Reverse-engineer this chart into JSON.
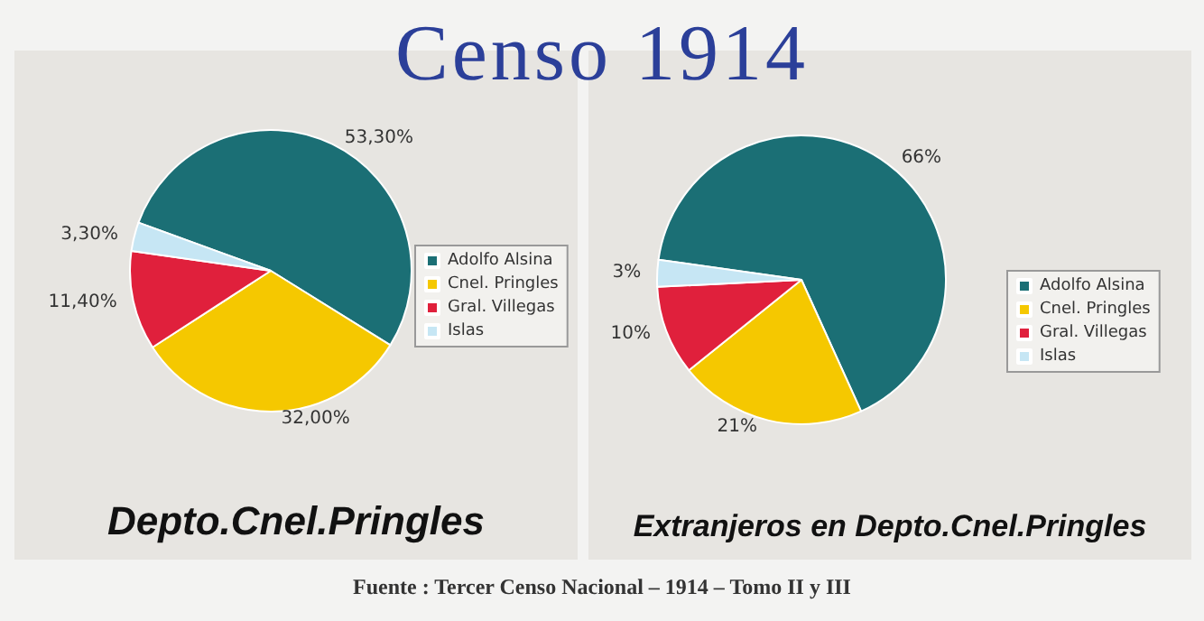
{
  "chart_data": [
    {
      "type": "pie",
      "title": "Censo 1914",
      "subtitle": "Depto.Cnel.Pringles",
      "categories": [
        "Adolfo Alsina",
        "Cnel. Pringles",
        "Gral. Villegas",
        "Islas"
      ],
      "values": [
        53.3,
        32.0,
        11.4,
        3.3
      ],
      "value_labels": [
        "53,30%",
        "32,00%",
        "11,40%",
        "3,30%"
      ],
      "colors": [
        "#1b6f75",
        "#f5c800",
        "#e0203c",
        "#c6e6f4"
      ],
      "legend": "right"
    },
    {
      "type": "pie",
      "subtitle": "Extranjeros en Depto.Cnel.Pringles",
      "categories": [
        "Adolfo Alsina",
        "Cnel. Pringles",
        "Gral. Villegas",
        "Islas"
      ],
      "values": [
        66,
        21,
        10,
        3
      ],
      "value_labels": [
        "66%",
        "21%",
        "10%",
        "3%"
      ],
      "colors": [
        "#1b6f75",
        "#f5c800",
        "#e0203c",
        "#c6e6f4"
      ],
      "legend": "right",
      "annotations": [
        "Fuente : Tercer Censo Nacional – 1914 – Tomo II y III"
      ]
    }
  ]
}
